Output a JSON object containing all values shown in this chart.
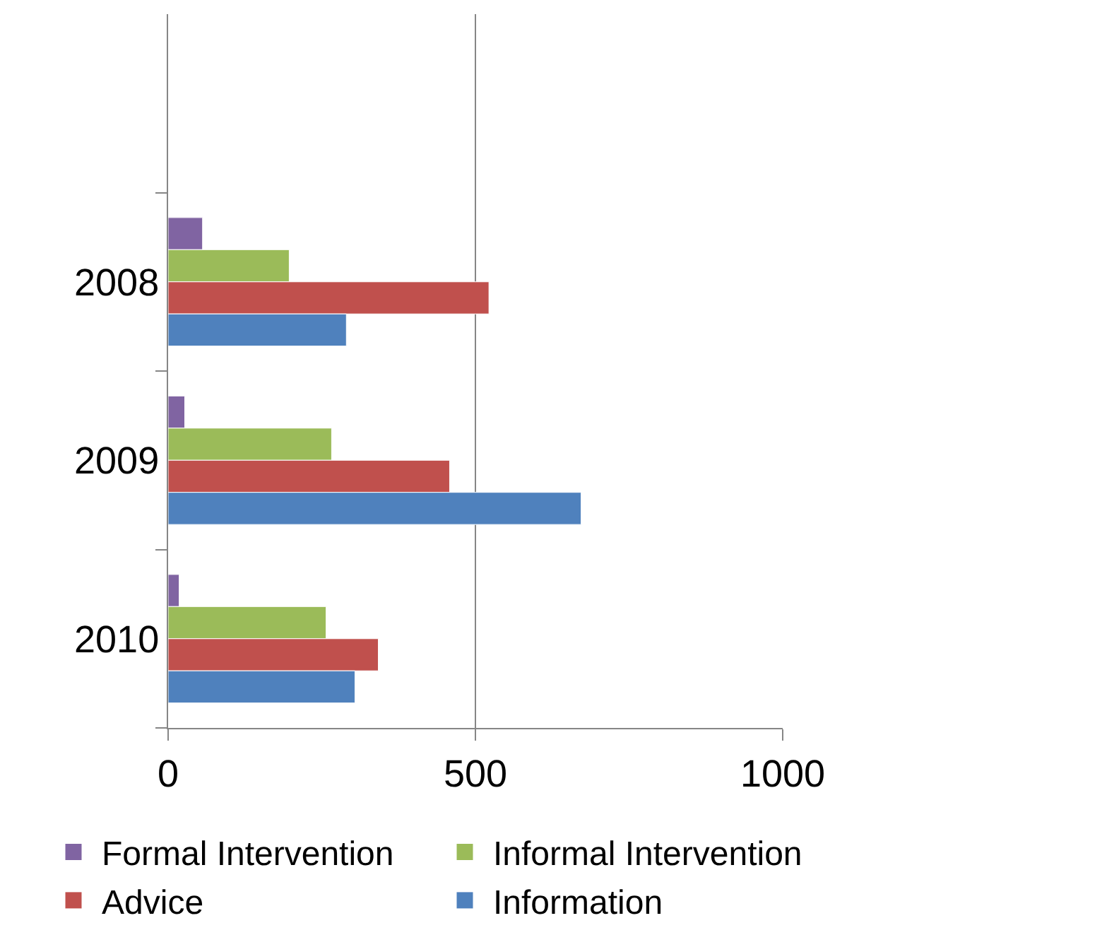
{
  "chart_data": {
    "type": "bar",
    "orientation": "horizontal",
    "categories": [
      null,
      "2008",
      "2009",
      "2010"
    ],
    "series": [
      {
        "name": "Formal Intervention",
        "color": "#8064a2",
        "values": [
          null,
          56,
          27,
          18
        ]
      },
      {
        "name": "Informal Intervention",
        "color": "#9bbb59",
        "values": [
          null,
          197,
          266,
          257
        ]
      },
      {
        "name": "Advice",
        "color": "#c0504d",
        "values": [
          null,
          522,
          458,
          342
        ]
      },
      {
        "name": "Information",
        "color": "#4f81bd",
        "values": [
          null,
          290,
          672,
          304
        ]
      }
    ],
    "xlim": [
      0,
      1000
    ],
    "xticks": [
      0,
      500,
      1000
    ],
    "grid": "x",
    "legend": "bottom"
  }
}
